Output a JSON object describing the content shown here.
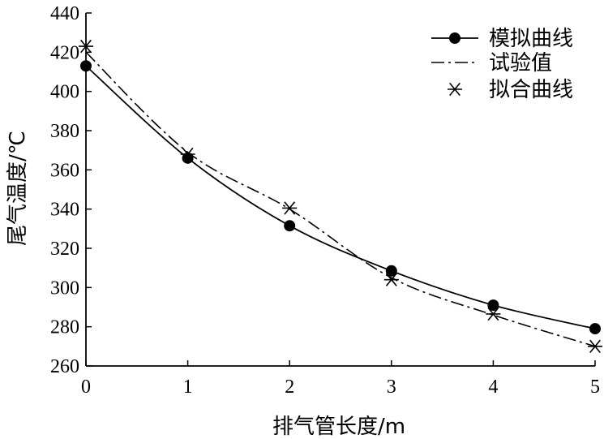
{
  "chart_data": {
    "type": "line",
    "xlabel": "排气管长度/m",
    "ylabel": "尾气温度/℃",
    "xlim": [
      0,
      5
    ],
    "ylim": [
      260,
      440
    ],
    "x_ticks": [
      "0",
      "1",
      "2",
      "3",
      "4",
      "5"
    ],
    "y_ticks": [
      "260",
      "280",
      "300",
      "320",
      "340",
      "360",
      "380",
      "400",
      "420",
      "440"
    ],
    "grid": false,
    "legend_position": "top-right",
    "series": [
      {
        "name": "模拟曲线",
        "style": "solid-line-filled-circle-markers",
        "x": [
          0,
          1,
          2,
          3,
          4,
          5
        ],
        "y": [
          413,
          366,
          331.5,
          308.5,
          291,
          279
        ]
      },
      {
        "name": "试验值",
        "style": "dash-dot-line",
        "x": [
          0,
          1,
          2,
          3,
          4,
          5
        ],
        "y": [
          420,
          369,
          340,
          305,
          286,
          270
        ]
      },
      {
        "name": "拟合曲线",
        "style": "asterisk-markers",
        "x": [
          0,
          1,
          2,
          3,
          4,
          5
        ],
        "y": [
          423,
          368,
          340.5,
          304,
          286.5,
          270
        ]
      }
    ]
  }
}
